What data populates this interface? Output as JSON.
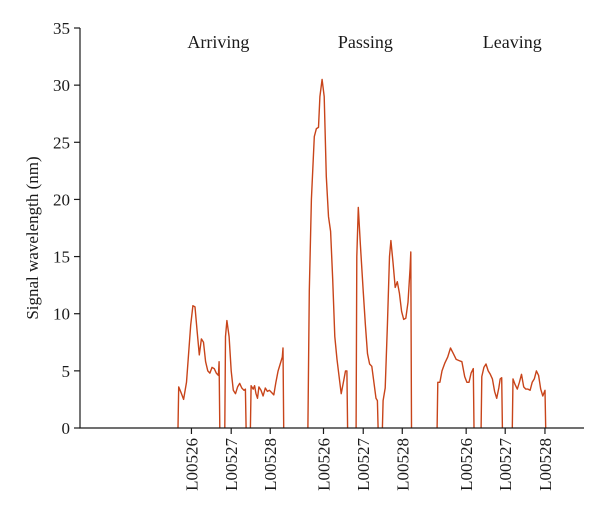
{
  "chart_data": {
    "type": "line",
    "ylabel": "Signal wavelength (nm)",
    "xlabel": "",
    "ylim": [
      0,
      35
    ],
    "yticks": [
      0,
      5,
      10,
      15,
      20,
      25,
      30,
      35
    ],
    "grid": false,
    "line_color": "#c8441a",
    "groups": [
      {
        "label": "Arriving",
        "center": 10.5
      },
      {
        "label": "Passing",
        "center": 31.2
      },
      {
        "label": "Leaving",
        "center": 51.9
      }
    ],
    "sensor_ticks": [
      {
        "label": "L00526",
        "x": 6.7
      },
      {
        "label": "L00527",
        "x": 12.3
      },
      {
        "label": "L00528",
        "x": 17.8
      },
      {
        "label": "L00526",
        "x": 25.3
      },
      {
        "label": "L00527",
        "x": 30.9
      },
      {
        "label": "L00528",
        "x": 36.4
      },
      {
        "label": "L00526",
        "x": 45.4
      },
      {
        "label": "L00527",
        "x": 50.9
      },
      {
        "label": "L00528",
        "x": 56.5
      }
    ],
    "xlim": [
      -9,
      62
    ],
    "series": [
      {
        "values": [
          [
            4.8,
            0
          ],
          [
            4.9,
            3.6
          ],
          [
            5.3,
            3
          ],
          [
            5.6,
            2.5
          ],
          [
            6,
            4
          ],
          [
            6.3,
            6.5
          ],
          [
            6.6,
            9
          ],
          [
            6.9,
            10.7
          ],
          [
            7.2,
            10.6
          ],
          [
            7.5,
            8.5
          ],
          [
            7.8,
            6.4
          ],
          [
            8.1,
            7.8
          ],
          [
            8.4,
            7.5
          ],
          [
            8.7,
            5.8
          ],
          [
            9,
            5
          ],
          [
            9.3,
            4.8
          ],
          [
            9.6,
            5.3
          ],
          [
            9.9,
            5.2
          ],
          [
            10.2,
            4.8
          ],
          [
            10.5,
            4.6
          ],
          [
            10.6,
            5.8
          ],
          [
            10.7,
            0
          ]
        ]
      },
      {
        "values": [
          [
            11.4,
            0
          ],
          [
            11.5,
            8
          ],
          [
            11.7,
            9.4
          ],
          [
            12,
            8
          ],
          [
            12.3,
            5
          ],
          [
            12.6,
            3.3
          ],
          [
            12.9,
            3
          ],
          [
            13.2,
            3.6
          ],
          [
            13.5,
            3.9
          ],
          [
            13.8,
            3.5
          ],
          [
            14.1,
            3.3
          ],
          [
            14.3,
            3.4
          ],
          [
            14.4,
            0
          ]
        ]
      },
      {
        "values": [
          [
            15,
            0
          ],
          [
            15.1,
            3.7
          ],
          [
            15.4,
            3.4
          ],
          [
            15.6,
            3.7
          ],
          [
            15.8,
            3
          ],
          [
            16,
            2.6
          ],
          [
            16.2,
            3.6
          ],
          [
            16.5,
            3.3
          ],
          [
            16.8,
            2.8
          ],
          [
            17.1,
            3.5
          ],
          [
            17.4,
            3.2
          ],
          [
            17.7,
            3.3
          ],
          [
            18,
            3.1
          ],
          [
            18.3,
            2.9
          ],
          [
            18.6,
            4
          ],
          [
            18.9,
            5
          ],
          [
            19.2,
            5.6
          ],
          [
            19.5,
            6.2
          ],
          [
            19.6,
            7
          ],
          [
            19.7,
            0
          ]
        ]
      },
      {
        "values": [
          [
            23.1,
            0
          ],
          [
            23.3,
            12
          ],
          [
            23.6,
            20
          ],
          [
            24,
            25.5
          ],
          [
            24.3,
            26.2
          ],
          [
            24.6,
            26.3
          ],
          [
            24.8,
            29
          ],
          [
            25.1,
            30.5
          ],
          [
            25.4,
            29
          ],
          [
            25.7,
            22
          ],
          [
            26,
            18.5
          ],
          [
            26.3,
            17.2
          ],
          [
            26.6,
            13
          ],
          [
            26.9,
            8
          ],
          [
            27.2,
            6
          ],
          [
            27.5,
            4.5
          ],
          [
            27.8,
            3
          ],
          [
            28.1,
            4
          ],
          [
            28.4,
            5
          ],
          [
            28.6,
            5
          ],
          [
            28.7,
            0
          ]
        ]
      },
      {
        "values": [
          [
            29.9,
            0
          ],
          [
            30,
            15
          ],
          [
            30.2,
            19.3
          ],
          [
            30.5,
            16
          ],
          [
            30.9,
            12
          ],
          [
            31.2,
            9
          ],
          [
            31.5,
            6.5
          ],
          [
            31.8,
            5.6
          ],
          [
            32.1,
            5.4
          ],
          [
            32.4,
            4
          ],
          [
            32.7,
            2.6
          ],
          [
            32.9,
            2.4
          ],
          [
            33,
            0
          ]
        ]
      },
      {
        "values": [
          [
            33.6,
            0
          ],
          [
            33.7,
            2.4
          ],
          [
            34,
            3.5
          ],
          [
            34.3,
            9
          ],
          [
            34.6,
            15
          ],
          [
            34.8,
            16.4
          ],
          [
            35.1,
            14.5
          ],
          [
            35.4,
            12.3
          ],
          [
            35.7,
            12.8
          ],
          [
            36,
            11.8
          ],
          [
            36.3,
            10.2
          ],
          [
            36.6,
            9.5
          ],
          [
            36.9,
            9.6
          ],
          [
            37.2,
            11
          ],
          [
            37.5,
            14
          ],
          [
            37.6,
            15.4
          ],
          [
            37.7,
            0
          ]
        ]
      },
      {
        "values": [
          [
            41.3,
            0
          ],
          [
            41.4,
            4
          ],
          [
            41.7,
            4
          ],
          [
            42,
            5
          ],
          [
            42.4,
            5.7
          ],
          [
            42.8,
            6.2
          ],
          [
            43.2,
            7
          ],
          [
            43.6,
            6.5
          ],
          [
            44,
            6
          ],
          [
            44.4,
            5.9
          ],
          [
            44.8,
            5.8
          ],
          [
            45.2,
            4.5
          ],
          [
            45.5,
            4
          ],
          [
            45.8,
            4
          ],
          [
            46.1,
            4.8
          ],
          [
            46.4,
            5.2
          ],
          [
            46.5,
            0
          ]
        ]
      },
      {
        "values": [
          [
            47.5,
            0
          ],
          [
            47.6,
            4.5
          ],
          [
            47.9,
            5.3
          ],
          [
            48.2,
            5.6
          ],
          [
            48.5,
            5
          ],
          [
            48.8,
            4.7
          ],
          [
            49.1,
            4.3
          ],
          [
            49.4,
            3.2
          ],
          [
            49.7,
            2.6
          ],
          [
            50,
            3.5
          ],
          [
            50.2,
            4.3
          ],
          [
            50.4,
            4.4
          ],
          [
            50.5,
            0
          ]
        ]
      },
      {
        "values": [
          [
            51.9,
            0
          ],
          [
            52,
            4.3
          ],
          [
            52.3,
            3.8
          ],
          [
            52.6,
            3.4
          ],
          [
            52.9,
            4
          ],
          [
            53.2,
            4.7
          ],
          [
            53.5,
            3.6
          ],
          [
            53.8,
            3.4
          ],
          [
            54.1,
            3.4
          ],
          [
            54.4,
            3.3
          ],
          [
            54.7,
            4
          ],
          [
            55,
            4.3
          ],
          [
            55.3,
            5
          ],
          [
            55.6,
            4.6
          ],
          [
            55.9,
            3.4
          ],
          [
            56.2,
            2.8
          ],
          [
            56.5,
            3.3
          ],
          [
            56.6,
            0
          ]
        ]
      }
    ]
  }
}
